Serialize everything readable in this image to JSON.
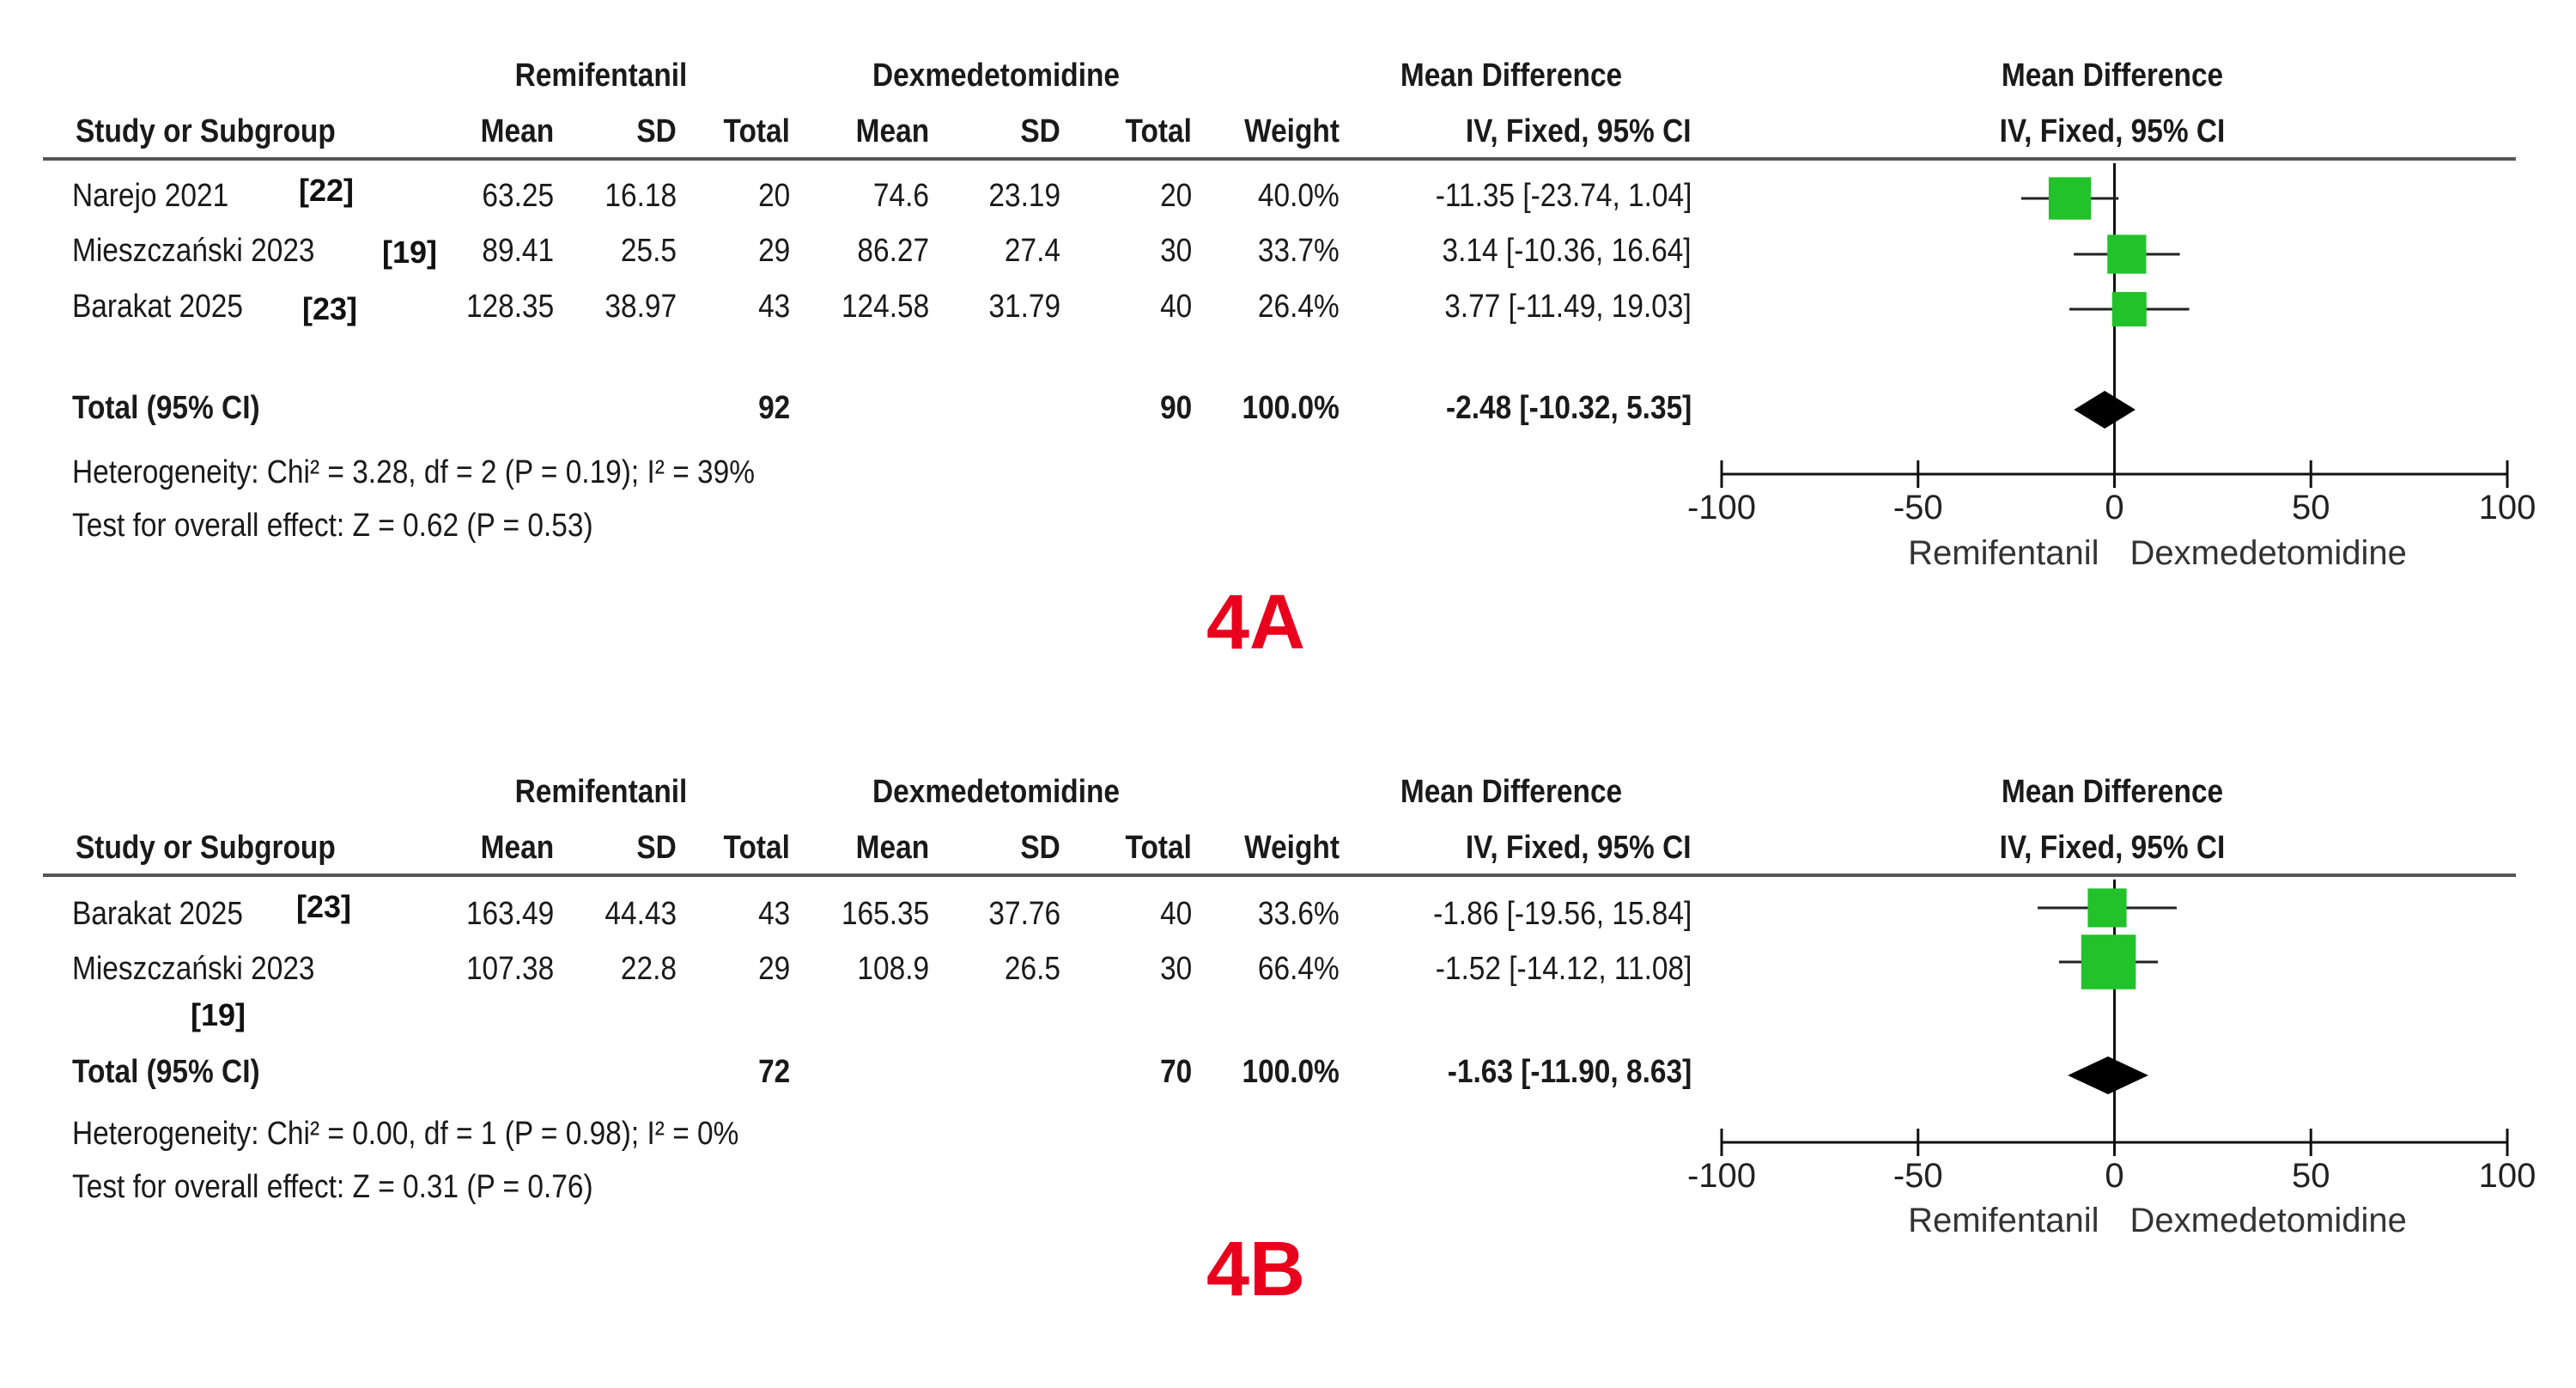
{
  "chart_data": [
    {
      "type": "forest",
      "panel_label": "4A",
      "header": {
        "group1": "Remifentanil",
        "group2": "Dexmedetomidine",
        "md_group": "Mean Difference",
        "plot_title": "Mean Difference",
        "plot_subtitle": "IV, Fixed, 95% CI",
        "columns": [
          "Study or Subgroup",
          "Mean",
          "SD",
          "Total",
          "Mean",
          "SD",
          "Total",
          "Weight",
          "IV, Fixed, 95% CI"
        ]
      },
      "studies": [
        {
          "name": "Narejo 2021",
          "ref": "[22]",
          "m1": "63.25",
          "sd1": "16.18",
          "n1": "20",
          "m2": "74.6",
          "sd2": "23.19",
          "n2": "20",
          "weight": "40.0%",
          "ci_text": "-11.35 [-23.74, 1.04]",
          "md": -11.35,
          "lo": -23.74,
          "hi": 1.04,
          "w": 40.0
        },
        {
          "name": "Mieszczański 2023",
          "ref": "[19]",
          "m1": "89.41",
          "sd1": "25.5",
          "n1": "29",
          "m2": "86.27",
          "sd2": "27.4",
          "n2": "30",
          "weight": "33.7%",
          "ci_text": "3.14 [-10.36, 16.64]",
          "md": 3.14,
          "lo": -10.36,
          "hi": 16.64,
          "w": 33.7
        },
        {
          "name": "Barakat 2025",
          "ref": "[23]",
          "m1": "128.35",
          "sd1": "38.97",
          "n1": "43",
          "m2": "124.58",
          "sd2": "31.79",
          "n2": "40",
          "weight": "26.4%",
          "ci_text": "3.77 [-11.49, 19.03]",
          "md": 3.77,
          "lo": -11.49,
          "hi": 19.03,
          "w": 26.4
        }
      ],
      "total": {
        "label": "Total (95% CI)",
        "n1": "92",
        "n2": "90",
        "weight": "100.0%",
        "ci_text": "-2.48 [-10.32, 5.35]",
        "md": -2.48,
        "lo": -10.32,
        "hi": 5.35
      },
      "heterogeneity": "Heterogeneity: Chi² = 3.28, df = 2 (P = 0.19); I² = 39%",
      "overall_effect": "Test for overall effect: Z = 0.62 (P = 0.53)",
      "axis": {
        "min": -100,
        "max": 100,
        "ticks": [
          "-100",
          "-50",
          "0",
          "50",
          "100"
        ],
        "left_label": "Remifentanil",
        "right_label": "Dexmedetomidine"
      },
      "colors": {
        "study_marker": "#22c22a",
        "summary_diamond": "#000000",
        "panel_label": "#e8001c"
      }
    },
    {
      "type": "forest",
      "panel_label": "4B",
      "header": {
        "group1": "Remifentanil",
        "group2": "Dexmedetomidine",
        "md_group": "Mean Difference",
        "plot_title": "Mean Difference",
        "plot_subtitle": "IV, Fixed, 95% CI",
        "columns": [
          "Study or Subgroup",
          "Mean",
          "SD",
          "Total",
          "Mean",
          "SD",
          "Total",
          "Weight",
          "IV, Fixed, 95% CI"
        ]
      },
      "studies": [
        {
          "name": "Barakat 2025",
          "ref": "[23]",
          "m1": "163.49",
          "sd1": "44.43",
          "n1": "43",
          "m2": "165.35",
          "sd2": "37.76",
          "n2": "40",
          "weight": "33.6%",
          "ci_text": "-1.86 [-19.56, 15.84]",
          "md": -1.86,
          "lo": -19.56,
          "hi": 15.84,
          "w": 33.6
        },
        {
          "name": "Mieszczański 2023",
          "ref": "[19]",
          "m1": "107.38",
          "sd1": "22.8",
          "n1": "29",
          "m2": "108.9",
          "sd2": "26.5",
          "n2": "30",
          "weight": "66.4%",
          "ci_text": "-1.52 [-14.12, 11.08]",
          "md": -1.52,
          "lo": -14.12,
          "hi": 11.08,
          "w": 66.4
        }
      ],
      "total": {
        "label": "Total (95% CI)",
        "n1": "72",
        "n2": "70",
        "weight": "100.0%",
        "ci_text": "-1.63 [-11.90, 8.63]",
        "md": -1.63,
        "lo": -11.9,
        "hi": 8.63
      },
      "heterogeneity": "Heterogeneity: Chi² = 0.00, df = 1 (P = 0.98); I² = 0%",
      "overall_effect": "Test for overall effect: Z = 0.31 (P = 0.76)",
      "axis": {
        "min": -100,
        "max": 100,
        "ticks": [
          "-100",
          "-50",
          "0",
          "50",
          "100"
        ],
        "left_label": "Remifentanil",
        "right_label": "Dexmedetomidine"
      },
      "colors": {
        "study_marker": "#22c22a",
        "summary_diamond": "#000000",
        "panel_label": "#e8001c"
      }
    }
  ]
}
